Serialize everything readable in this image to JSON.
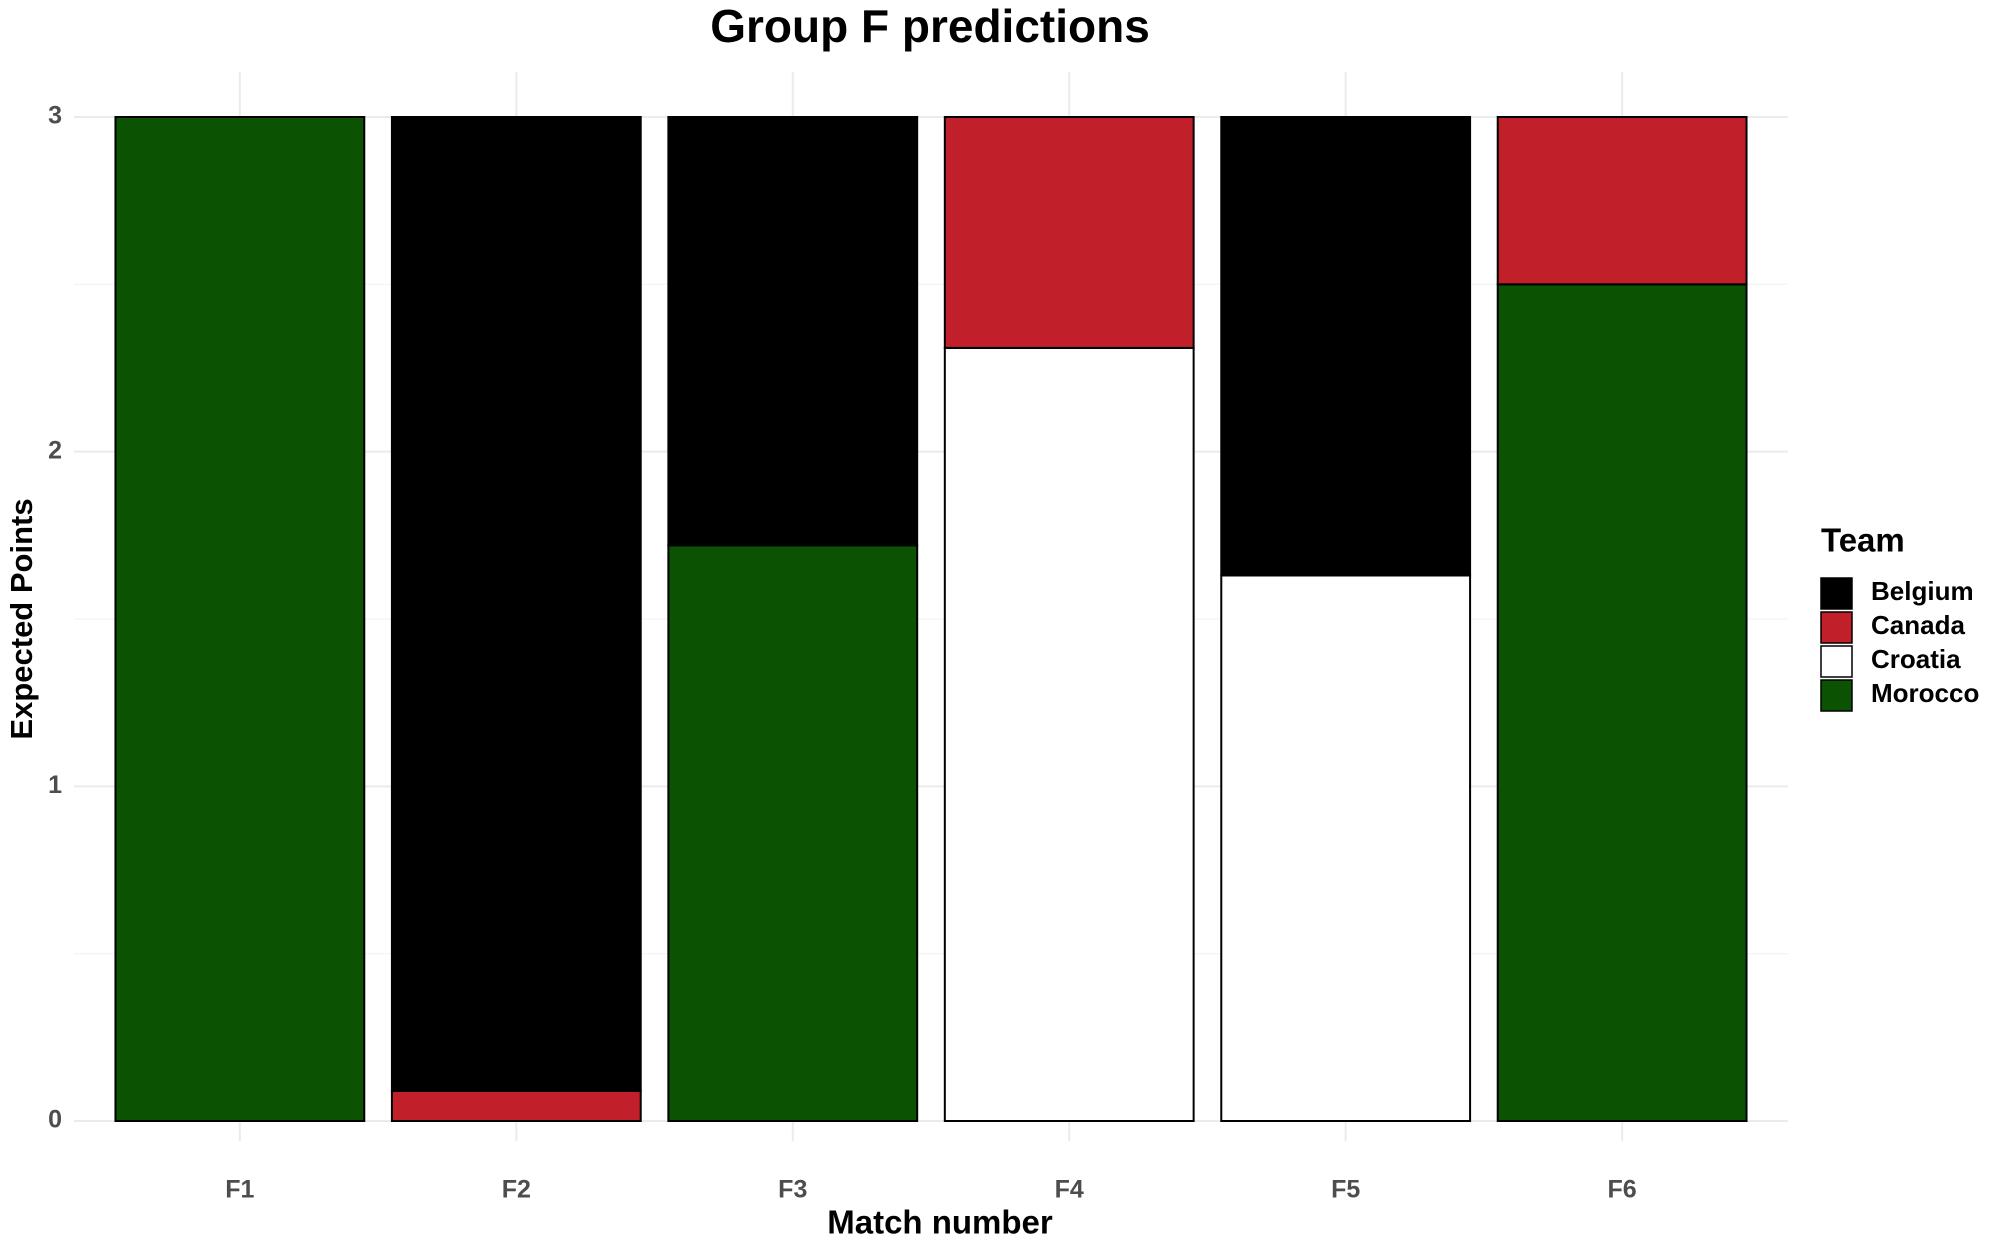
{
  "chart_data": {
    "type": "stacked_bar",
    "title": "Group F predictions",
    "x_label": "Match number",
    "y_label": "Expected Points",
    "legend_title": "Team",
    "legend_position": "right",
    "grid": true,
    "categories": [
      "F1",
      "F2",
      "F3",
      "F4",
      "F5",
      "F6"
    ],
    "series": [
      {
        "name": "Belgium",
        "color": "#000000",
        "values": [
          0,
          2.91,
          1.28,
          0,
          1.37,
          0
        ]
      },
      {
        "name": "Canada",
        "color": "#c1202b",
        "values": [
          0,
          0.09,
          0,
          0.69,
          0,
          0.5
        ]
      },
      {
        "name": "Croatia",
        "color": "#ffffff",
        "values": [
          0,
          0,
          0,
          2.31,
          1.63,
          0
        ]
      },
      {
        "name": "Morocco",
        "color": "#0c5203",
        "values": [
          3,
          0,
          1.72,
          0,
          0,
          2.5
        ]
      }
    ],
    "stack_order": [
      "Morocco",
      "Croatia",
      "Canada",
      "Belgium"
    ],
    "ylim": [
      0,
      3
    ],
    "yticks": [
      0,
      1,
      2,
      3
    ],
    "yminor": [
      0.5,
      1.5,
      2.5
    ]
  }
}
